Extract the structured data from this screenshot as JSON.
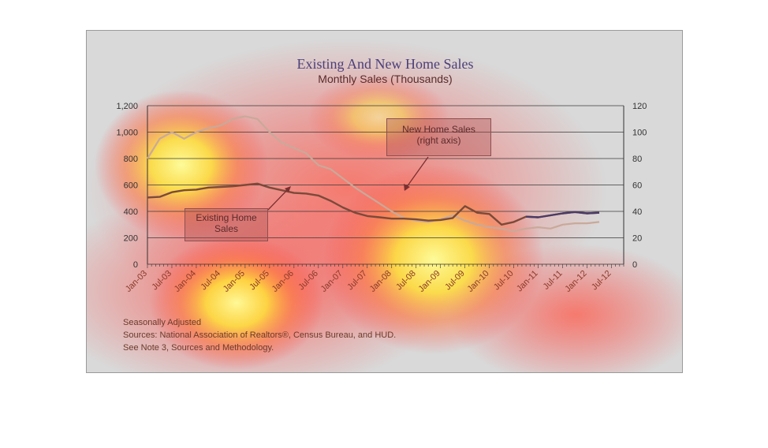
{
  "title": "Existing And New Home Sales",
  "subtitle": "Monthly Sales (Thousands)",
  "callouts": {
    "new_home": [
      "New Home Sales",
      "(right axis)"
    ],
    "existing_home": [
      "Existing Home",
      "Sales"
    ]
  },
  "notes": [
    "Seasonally Adjusted",
    "Sources:  National Association of Realtors®, Census Bureau, and HUD.",
    "See Note 3, Sources and Methodology."
  ],
  "colors": {
    "existing_line": "#7b4a3a",
    "new_line": "#c9a99a",
    "recent_line": "#4a3b66"
  },
  "chart_data": {
    "type": "line",
    "title": "Existing And New Home Sales",
    "subtitle": "Monthly Sales (Thousands)",
    "x_tick_labels": [
      "Jan-03",
      "Jul-03",
      "Jan-04",
      "Jul-04",
      "Jan-05",
      "Jul-05",
      "Jan-06",
      "Jul-06",
      "Jan-07",
      "Jul-07",
      "Jan-08",
      "Jul-08",
      "Jan-09",
      "Jul-09",
      "Jan-10",
      "Jul-10",
      "Jan-11",
      "Jul-11",
      "Jan-12",
      "Jul-12"
    ],
    "ylim_left": [
      0,
      1200
    ],
    "yticks_left": [
      "0",
      "200",
      "400",
      "600",
      "800",
      "1,000",
      "1,200"
    ],
    "ylim_right": [
      0,
      120
    ],
    "yticks_right": [
      "0",
      "20",
      "40",
      "60",
      "80",
      "100",
      "120"
    ],
    "grid": true,
    "series": [
      {
        "name": "Existing Home Sales",
        "axis": "left",
        "start": "Jan-03",
        "freq": "quarterly",
        "values": [
          505,
          510,
          545,
          560,
          565,
          580,
          585,
          590,
          600,
          610,
          580,
          560,
          540,
          535,
          520,
          480,
          430,
          390,
          365,
          355,
          345,
          345,
          340,
          330,
          335,
          350,
          440,
          390,
          380,
          300,
          320,
          360,
          355,
          370,
          385,
          395,
          385,
          390
        ]
      },
      {
        "name": "New Home Sales",
        "axis": "right",
        "start": "Jan-03",
        "freq": "quarterly",
        "values": [
          80,
          95,
          100,
          95,
          100,
          103,
          105,
          110,
          112,
          110,
          100,
          92,
          88,
          84,
          75,
          72,
          65,
          58,
          52,
          46,
          40,
          35,
          33,
          32,
          34,
          37,
          33,
          30,
          28,
          27,
          25,
          27,
          28,
          27,
          30,
          31,
          31,
          32
        ]
      }
    ]
  }
}
